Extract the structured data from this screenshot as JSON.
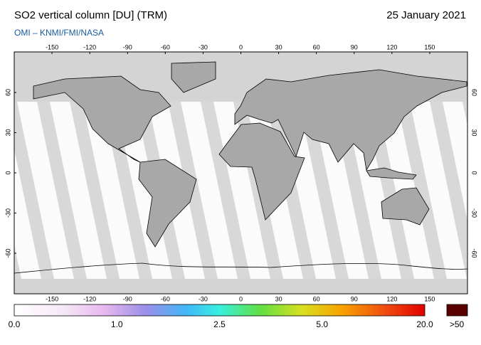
{
  "header": {
    "title": "SO2 vertical column [DU] (TRM)",
    "date": "25 January 2021",
    "source": "OMI  –  KNMI/FMI/NASA"
  },
  "map": {
    "lon_ticks": [
      -150,
      -120,
      -90,
      -60,
      -30,
      0,
      30,
      60,
      90,
      120,
      150
    ],
    "lat_ticks": [
      60,
      30,
      0,
      -30,
      -60
    ]
  },
  "colorbar": {
    "labels": [
      "0.0",
      "1.0",
      "2.5",
      "5.0",
      "20.0"
    ],
    "overflow_label": ">50"
  }
}
